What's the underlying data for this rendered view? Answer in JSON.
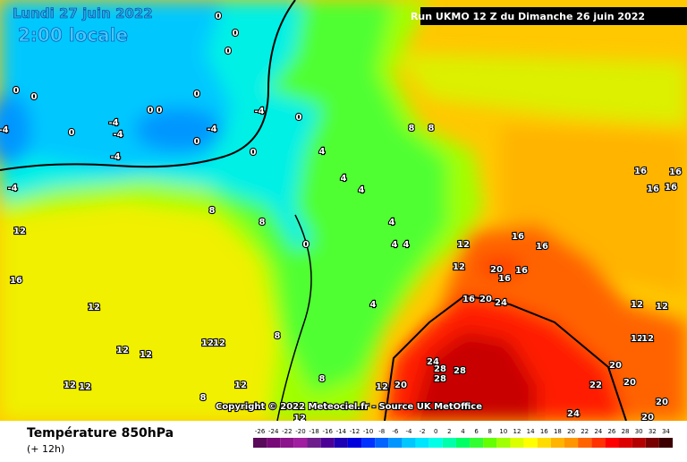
{
  "header": {
    "date": "Lundi 27 juin 2022",
    "local_time": "2:00 locale",
    "run": "Run UKMO 12 Z du Dimanche 26 juin 2022"
  },
  "copyright": "Copyright © 2022 Meteociel.fr - Source UK MetOffice",
  "legend": {
    "title": "Température 850hPa",
    "lead": "(+ 12h)",
    "scale": [
      -26,
      -24,
      -22,
      -20,
      -18,
      -16,
      -14,
      -12,
      -10,
      -8,
      -6,
      -4,
      -2,
      0,
      2,
      4,
      6,
      8,
      10,
      12,
      14,
      16,
      18,
      20,
      22,
      24,
      26,
      28,
      30,
      32,
      34
    ],
    "colors": [
      "#5a0a5a",
      "#780a78",
      "#8c148c",
      "#a01ea0",
      "#6e1e8c",
      "#4b0096",
      "#1e00b4",
      "#0000dc",
      "#0032ff",
      "#0064ff",
      "#0096ff",
      "#00c8ff",
      "#00e6ff",
      "#00ffe6",
      "#00ffaa",
      "#00ff64",
      "#32ff32",
      "#64ff00",
      "#a0ff00",
      "#dcff00",
      "#ffff00",
      "#ffdc00",
      "#ffb400",
      "#ff9600",
      "#ff6400",
      "#ff3200",
      "#ff0000",
      "#dc0000",
      "#b40000",
      "#780000",
      "#3c0000"
    ]
  },
  "map": {
    "contour_labels": [
      0,
      0,
      0,
      0,
      0,
      0,
      0,
      0,
      -4,
      -4,
      -4,
      -4,
      -4,
      -4,
      -4,
      0,
      0,
      0,
      0,
      4,
      8,
      8,
      4,
      4,
      4,
      4,
      4,
      8,
      8,
      0,
      12,
      12,
      12,
      16,
      12,
      4,
      8,
      12,
      12,
      12,
      12,
      8,
      12,
      12,
      12,
      8,
      12,
      20,
      16,
      16,
      16,
      16,
      16,
      16,
      16,
      16,
      20,
      24,
      16,
      24,
      28,
      28,
      28,
      20,
      12,
      24,
      20,
      20,
      22,
      20,
      20,
      12,
      12,
      12,
      12
    ]
  }
}
